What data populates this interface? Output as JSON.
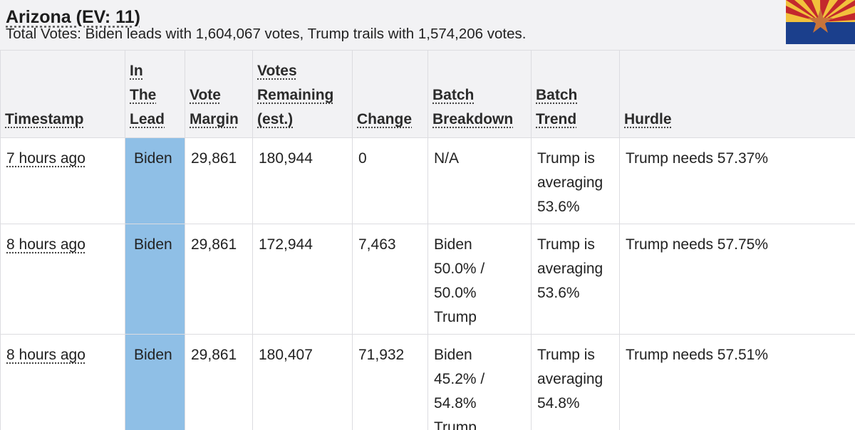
{
  "header": {
    "title": "Arizona (EV: 11)",
    "summary": "Total Votes: Biden leads with 1,604,067 votes, Trump trails with 1,574,206 votes.",
    "flag_icon": "arizona-flag-icon",
    "colors": {
      "header_bg": "#f2f2f4",
      "lead_cell_bg": "#8fbfe6",
      "flag_red": "#c3282d",
      "flag_yellow": "#f2c13c",
      "flag_blue": "#1b3f8c",
      "flag_copper": "#c8743a"
    }
  },
  "table": {
    "columns": [
      {
        "lines": [
          "Timestamp"
        ]
      },
      {
        "lines": [
          "In",
          "The",
          "Lead"
        ]
      },
      {
        "lines": [
          "Vote",
          "Margin"
        ]
      },
      {
        "lines": [
          "Votes",
          "Remaining",
          "(est.)"
        ]
      },
      {
        "lines": [
          "Change"
        ]
      },
      {
        "lines": [
          "Batch",
          "Breakdown"
        ]
      },
      {
        "lines": [
          "Batch",
          "Trend"
        ]
      },
      {
        "lines": [
          "Hurdle"
        ]
      }
    ],
    "rows": [
      {
        "timestamp": "7 hours ago",
        "lead": "Biden",
        "margin": "29,861",
        "remaining": "180,944",
        "change": "0",
        "breakdown": [
          "N/A"
        ],
        "trend": [
          "Trump is",
          "averaging",
          "53.6%"
        ],
        "hurdle": "Trump needs 57.37%"
      },
      {
        "timestamp": "8 hours ago",
        "lead": "Biden",
        "margin": "29,861",
        "remaining": "172,944",
        "change": "7,463",
        "breakdown": [
          "Biden",
          "50.0% /",
          "50.0%",
          "Trump"
        ],
        "trend": [
          "Trump is",
          "averaging",
          "53.6%"
        ],
        "hurdle": "Trump needs 57.75%"
      },
      {
        "timestamp": "8 hours ago",
        "lead": "Biden",
        "margin": "29,861",
        "remaining": "180,407",
        "change": "71,932",
        "breakdown": [
          "Biden",
          "45.2% /",
          "54.8%",
          "Trump"
        ],
        "trend": [
          "Trump is",
          "averaging",
          "54.8%"
        ],
        "hurdle": "Trump needs 57.51%"
      }
    ]
  }
}
